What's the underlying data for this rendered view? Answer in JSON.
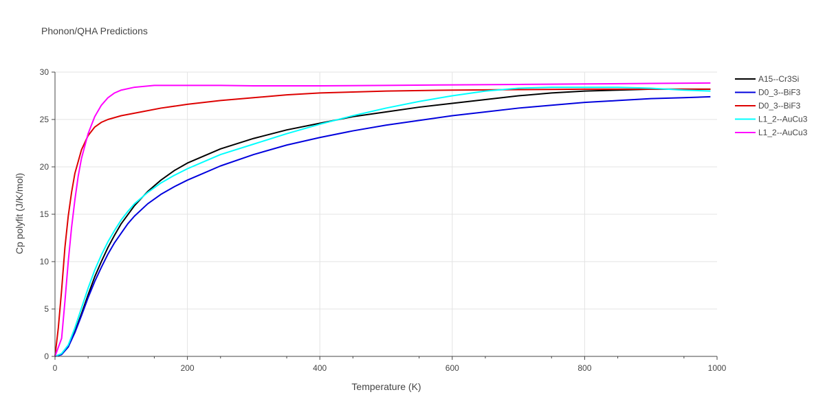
{
  "chart_data": {
    "type": "line",
    "title": "Phonon/QHA Predictions",
    "xlabel": "Temperature (K)",
    "ylabel": "Cp polyfit (J/K/mol)",
    "xlim": [
      0,
      1000
    ],
    "ylim": [
      0,
      30
    ],
    "xticks": [
      0,
      200,
      400,
      600,
      800,
      1000
    ],
    "yticks": [
      0,
      5,
      10,
      15,
      20,
      25,
      30
    ],
    "grid": true,
    "legend_position": "top-right",
    "series": [
      {
        "name": "A15--Cr3Si",
        "color": "#000000",
        "points": [
          [
            0,
            0
          ],
          [
            10,
            0.2
          ],
          [
            20,
            1.0
          ],
          [
            30,
            2.6
          ],
          [
            40,
            4.5
          ],
          [
            50,
            6.5
          ],
          [
            60,
            8.4
          ],
          [
            70,
            10.0
          ],
          [
            80,
            11.5
          ],
          [
            90,
            12.8
          ],
          [
            100,
            14.0
          ],
          [
            120,
            15.9
          ],
          [
            140,
            17.4
          ],
          [
            160,
            18.6
          ],
          [
            180,
            19.6
          ],
          [
            200,
            20.4
          ],
          [
            250,
            21.9
          ],
          [
            300,
            23.0
          ],
          [
            350,
            23.9
          ],
          [
            400,
            24.6
          ],
          [
            450,
            25.3
          ],
          [
            500,
            25.8
          ],
          [
            550,
            26.3
          ],
          [
            600,
            26.7
          ],
          [
            650,
            27.1
          ],
          [
            700,
            27.5
          ],
          [
            750,
            27.8
          ],
          [
            800,
            28.0
          ],
          [
            850,
            28.1
          ],
          [
            900,
            28.2
          ],
          [
            950,
            28.2
          ],
          [
            990,
            28.2
          ]
        ]
      },
      {
        "name": "D0_3--BiF3",
        "color": "#0000dd",
        "points": [
          [
            0,
            0
          ],
          [
            10,
            0.2
          ],
          [
            20,
            1.0
          ],
          [
            30,
            2.5
          ],
          [
            40,
            4.3
          ],
          [
            50,
            6.2
          ],
          [
            60,
            7.9
          ],
          [
            70,
            9.4
          ],
          [
            80,
            10.8
          ],
          [
            90,
            12.0
          ],
          [
            100,
            13.0
          ],
          [
            110,
            14.0
          ],
          [
            120,
            14.8
          ],
          [
            140,
            16.1
          ],
          [
            160,
            17.1
          ],
          [
            180,
            17.9
          ],
          [
            200,
            18.6
          ],
          [
            220,
            19.2
          ],
          [
            250,
            20.1
          ],
          [
            300,
            21.3
          ],
          [
            350,
            22.3
          ],
          [
            400,
            23.1
          ],
          [
            450,
            23.8
          ],
          [
            500,
            24.4
          ],
          [
            550,
            24.9
          ],
          [
            600,
            25.4
          ],
          [
            650,
            25.8
          ],
          [
            700,
            26.2
          ],
          [
            750,
            26.5
          ],
          [
            800,
            26.8
          ],
          [
            850,
            27.0
          ],
          [
            900,
            27.2
          ],
          [
            950,
            27.3
          ],
          [
            990,
            27.4
          ]
        ]
      },
      {
        "name": "D0_3--BiF3",
        "color": "#dd0000",
        "points": [
          [
            0,
            0
          ],
          [
            5,
            3.0
          ],
          [
            10,
            7.0
          ],
          [
            15,
            11.5
          ],
          [
            20,
            14.8
          ],
          [
            25,
            17.3
          ],
          [
            30,
            19.3
          ],
          [
            40,
            21.8
          ],
          [
            50,
            23.3
          ],
          [
            60,
            24.2
          ],
          [
            70,
            24.7
          ],
          [
            80,
            25.0
          ],
          [
            100,
            25.4
          ],
          [
            130,
            25.8
          ],
          [
            160,
            26.2
          ],
          [
            200,
            26.6
          ],
          [
            250,
            27.0
          ],
          [
            300,
            27.3
          ],
          [
            350,
            27.6
          ],
          [
            400,
            27.8
          ],
          [
            450,
            27.9
          ],
          [
            500,
            28.0
          ],
          [
            600,
            28.1
          ],
          [
            700,
            28.15
          ],
          [
            800,
            28.2
          ],
          [
            900,
            28.2
          ],
          [
            990,
            28.2
          ]
        ]
      },
      {
        "name": "L1_2--AuCu3",
        "color": "#00ffff",
        "points": [
          [
            0,
            0
          ],
          [
            10,
            0.3
          ],
          [
            20,
            1.2
          ],
          [
            30,
            3.0
          ],
          [
            40,
            5.1
          ],
          [
            50,
            7.2
          ],
          [
            60,
            9.1
          ],
          [
            70,
            10.7
          ],
          [
            80,
            12.1
          ],
          [
            90,
            13.3
          ],
          [
            100,
            14.4
          ],
          [
            110,
            15.3
          ],
          [
            120,
            16.1
          ],
          [
            140,
            17.3
          ],
          [
            160,
            18.3
          ],
          [
            180,
            19.1
          ],
          [
            200,
            19.8
          ],
          [
            220,
            20.4
          ],
          [
            250,
            21.3
          ],
          [
            300,
            22.4
          ],
          [
            350,
            23.5
          ],
          [
            400,
            24.5
          ],
          [
            450,
            25.4
          ],
          [
            500,
            26.2
          ],
          [
            550,
            26.9
          ],
          [
            600,
            27.5
          ],
          [
            650,
            28.0
          ],
          [
            700,
            28.3
          ],
          [
            750,
            28.4
          ],
          [
            800,
            28.4
          ],
          [
            850,
            28.4
          ],
          [
            900,
            28.3
          ],
          [
            950,
            28.1
          ],
          [
            990,
            28.0
          ]
        ]
      },
      {
        "name": "L1_2--AuCu3",
        "color": "#ff00ff",
        "points": [
          [
            0,
            0
          ],
          [
            10,
            1.9
          ],
          [
            15,
            5.8
          ],
          [
            20,
            10.0
          ],
          [
            25,
            13.6
          ],
          [
            30,
            16.5
          ],
          [
            35,
            19.0
          ],
          [
            40,
            20.9
          ],
          [
            50,
            23.5
          ],
          [
            60,
            25.3
          ],
          [
            70,
            26.5
          ],
          [
            80,
            27.3
          ],
          [
            90,
            27.8
          ],
          [
            100,
            28.1
          ],
          [
            120,
            28.4
          ],
          [
            150,
            28.6
          ],
          [
            200,
            28.6
          ],
          [
            250,
            28.6
          ],
          [
            300,
            28.55
          ],
          [
            350,
            28.55
          ],
          [
            400,
            28.55
          ],
          [
            500,
            28.6
          ],
          [
            600,
            28.65
          ],
          [
            700,
            28.7
          ],
          [
            800,
            28.75
          ],
          [
            900,
            28.8
          ],
          [
            990,
            28.85
          ]
        ]
      }
    ]
  }
}
